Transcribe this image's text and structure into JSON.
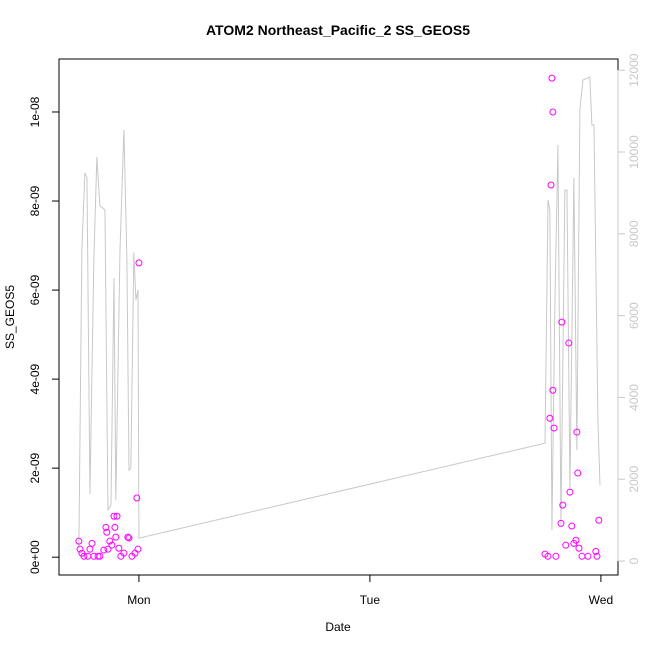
{
  "chart_data": {
    "type": "scatter",
    "title": "ATOM2 Northeast_Pacific_2 SS_GEOS5",
    "xlabel": "Date",
    "ylabel": "SS_GEOS5",
    "xlim": [
      -0.346,
      2.074
    ],
    "xticks": [
      {
        "value": 0,
        "label": "Mon"
      },
      {
        "value": 1,
        "label": "Tue"
      },
      {
        "value": 2,
        "label": "Wed"
      }
    ],
    "ylim": [
      -4e-10,
      1.119e-08
    ],
    "yticks": [
      {
        "value": 0,
        "label": "0e+00"
      },
      {
        "value": 2e-09,
        "label": "2e-09"
      },
      {
        "value": 4e-09,
        "label": "4e-09"
      },
      {
        "value": 6e-09,
        "label": "6e-09"
      },
      {
        "value": 8e-09,
        "label": "8e-09"
      },
      {
        "value": 1e-08,
        "label": "1e-08"
      }
    ],
    "y2lim": [
      -342,
      12274
    ],
    "y2ticks": [
      0,
      2000,
      4000,
      6000,
      8000,
      10000,
      12000
    ],
    "series": [
      {
        "type": "scatter",
        "color": "#ff00ff",
        "x": [
          -0.26,
          -0.255,
          -0.247,
          -0.238,
          -0.221,
          -0.212,
          -0.203,
          -0.195,
          -0.177,
          -0.169,
          -0.152,
          -0.143,
          -0.139,
          -0.134,
          -0.126,
          -0.117,
          -0.108,
          -0.104,
          -0.1,
          -0.095,
          -0.087,
          -0.078,
          -0.065,
          -0.048,
          -0.043,
          -0.03,
          -0.017,
          -0.009,
          -0.004,
          0,
          1.758,
          1.771,
          1.779,
          1.784,
          1.788,
          1.792,
          1.792,
          1.797,
          1.805,
          1.827,
          1.831,
          1.835,
          1.848,
          1.861,
          1.866,
          1.874,
          1.883,
          1.892,
          1.896,
          1.9,
          1.905,
          1.918,
          1.944,
          1.978,
          1.983,
          1.991
        ],
        "values": [
          3.6e-10,
          1.8e-10,
          9e-11,
          2e-11,
          2e-11,
          1.8e-10,
          3.1e-10,
          2e-11,
          2e-11,
          2e-11,
          1.6e-10,
          6.7e-10,
          5.6e-10,
          1.8e-10,
          3.6e-10,
          2.7e-10,
          9.2e-10,
          6.7e-10,
          4.5e-10,
          9.2e-10,
          2e-10,
          2e-11,
          9e-11,
          4.5e-10,
          4.3e-10,
          2e-11,
          9e-11,
          1.33e-09,
          1.8e-10,
          6.61e-09,
          7e-11,
          2e-11,
          3.12e-09,
          8.36e-09,
          1.076e-08,
          1e-08,
          3.75e-09,
          2.9e-09,
          2e-11,
          7.6e-10,
          5.28e-09,
          1.17e-09,
          2.7e-10,
          4.81e-09,
          1.46e-09,
          7e-10,
          3.1e-10,
          3.8e-10,
          2.81e-09,
          1.89e-09,
          2e-10,
          2e-11,
          2e-11,
          1.3e-10,
          2e-11,
          8.3e-10
        ]
      },
      {
        "type": "line",
        "axis": "y2",
        "color": "#c8c8c8",
        "x": [
          -0.26,
          -0.247,
          -0.234,
          -0.225,
          -0.212,
          -0.195,
          -0.182,
          -0.169,
          -0.156,
          -0.147,
          -0.134,
          -0.121,
          -0.108,
          -0.1,
          -0.082,
          -0.065,
          -0.052,
          -0.043,
          -0.035,
          -0.022,
          -0.013,
          -0.004,
          0,
          1.758,
          1.771,
          1.779,
          1.788,
          1.801,
          1.814,
          1.827,
          1.844,
          1.853,
          1.866,
          1.883,
          1.896,
          1.909,
          1.922,
          1.952,
          1.961,
          1.97,
          1.987,
          1.996
        ],
        "values": [
          318,
          7600,
          9490,
          9370,
          1640,
          7410,
          9880,
          8680,
          8630,
          8580,
          1250,
          1370,
          6920,
          1490,
          7600,
          10540,
          7360,
          2220,
          2270,
          7550,
          6380,
          6630,
          560,
          2880,
          8830,
          8580,
          760,
          6380,
          10170,
          880,
          9070,
          9070,
          1740,
          9370,
          2710,
          11030,
          11760,
          11830,
          10660,
          10660,
          3450,
          1860
        ]
      }
    ]
  }
}
